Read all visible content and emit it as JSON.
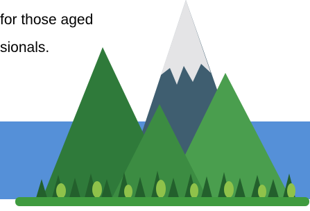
{
  "text_lines": [
    "for those aged",
    "sionals."
  ]
}
